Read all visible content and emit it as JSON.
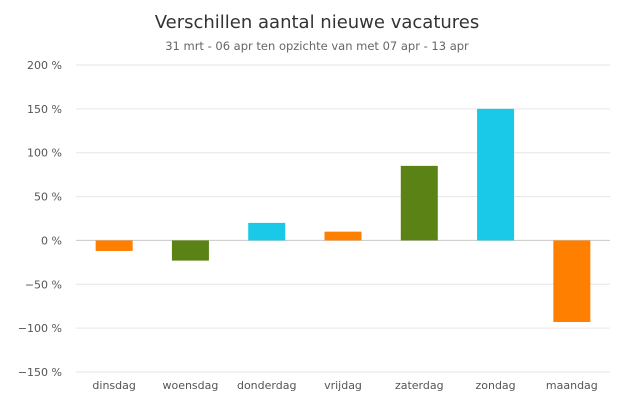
{
  "chart_data": {
    "type": "bar",
    "title": "Verschillen aantal nieuwe vacatures",
    "subtitle": "31 mrt - 06 apr ten opzichte van met 07 apr - 13 apr",
    "xlabel": "",
    "ylabel": "",
    "ylim": [
      -150,
      200
    ],
    "y_ticks": [
      -150,
      -100,
      -50,
      0,
      50,
      100,
      150,
      200
    ],
    "y_tick_labels": [
      "−150 %",
      "−100 %",
      "−50 %",
      "0 %",
      "50 %",
      "100 %",
      "150 %",
      "200 %"
    ],
    "grid": true,
    "legend": "none",
    "categories": [
      "dinsdag",
      "woensdag",
      "donderdag",
      "vrijdag",
      "zaterdag",
      "zondag",
      "maandag"
    ],
    "values": [
      -12,
      -23,
      20,
      10,
      85,
      150,
      -93
    ],
    "colors": [
      "#ff7f00",
      "#5a8214",
      "#1ac8e8",
      "#ff7f00",
      "#5a8214",
      "#1ac8e8",
      "#ff7f00"
    ]
  }
}
